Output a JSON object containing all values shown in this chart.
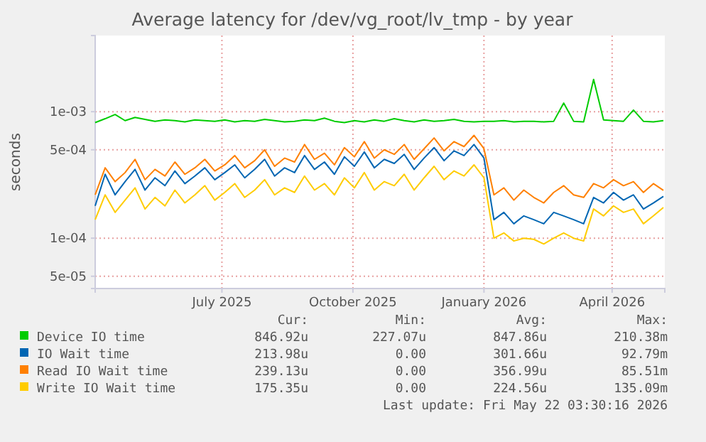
{
  "chart_data": {
    "type": "line",
    "title": "Average latency for /dev/vg_root/lv_tmp - by year",
    "ylabel": "seconds",
    "log": "y",
    "grid": true,
    "legend": "bottom",
    "line_style": "solid",
    "marker": "none",
    "xlim": [
      "2025-04-17",
      "2026-05-22"
    ],
    "xticks": [
      {
        "value": "2025-07-15",
        "label": "July 2025"
      },
      {
        "value": "2025-10-15",
        "label": "October 2025"
      },
      {
        "value": "2026-01-15",
        "label": "January 2026"
      },
      {
        "value": "2026-04-15",
        "label": "April 2026"
      }
    ],
    "ylim": [
      4e-05,
      0.004
    ],
    "yticks": [
      {
        "value": 5e-05,
        "label": "5e-05"
      },
      {
        "value": 0.0001,
        "label": "1e-04"
      },
      {
        "value": 0.0005,
        "label": "5e-04"
      },
      {
        "value": 0.001,
        "label": "1e-03"
      }
    ],
    "x": [
      "2025-04-17",
      "2025-04-24",
      "2025-05-01",
      "2025-05-08",
      "2025-05-15",
      "2025-05-22",
      "2025-05-29",
      "2025-06-05",
      "2025-06-12",
      "2025-06-19",
      "2025-06-26",
      "2025-07-03",
      "2025-07-10",
      "2025-07-17",
      "2025-07-24",
      "2025-07-31",
      "2025-08-07",
      "2025-08-14",
      "2025-08-21",
      "2025-08-28",
      "2025-09-04",
      "2025-09-11",
      "2025-09-18",
      "2025-09-25",
      "2025-10-02",
      "2025-10-09",
      "2025-10-16",
      "2025-10-23",
      "2025-10-30",
      "2025-11-06",
      "2025-11-13",
      "2025-11-20",
      "2025-11-27",
      "2025-12-04",
      "2025-12-11",
      "2025-12-18",
      "2025-12-25",
      "2026-01-01",
      "2026-01-08",
      "2026-01-15",
      "2026-01-22",
      "2026-01-29",
      "2026-02-05",
      "2026-02-12",
      "2026-02-19",
      "2026-02-26",
      "2026-03-05",
      "2026-03-12",
      "2026-03-19",
      "2026-03-26",
      "2026-04-02",
      "2026-04-09",
      "2026-04-16",
      "2026-04-23",
      "2026-04-30",
      "2026-05-07",
      "2026-05-14",
      "2026-05-21"
    ],
    "series": [
      {
        "name": "Device IO time",
        "color": "#00cc00",
        "values": [
          0.00082,
          0.00088,
          0.00095,
          0.00085,
          0.0009,
          0.00087,
          0.00084,
          0.00086,
          0.00085,
          0.00083,
          0.00086,
          0.00085,
          0.00084,
          0.00086,
          0.00083,
          0.00085,
          0.00084,
          0.00087,
          0.00085,
          0.00083,
          0.00084,
          0.00086,
          0.00085,
          0.00089,
          0.00084,
          0.00082,
          0.00085,
          0.00083,
          0.00086,
          0.00084,
          0.00088,
          0.00085,
          0.00083,
          0.00086,
          0.00084,
          0.00085,
          0.00087,
          0.00084,
          0.00083,
          0.00084,
          0.00084,
          0.00085,
          0.00083,
          0.00084,
          0.00084,
          0.00083,
          0.00084,
          0.00117,
          0.00084,
          0.00083,
          0.0018,
          0.00086,
          0.00085,
          0.00084,
          0.00103,
          0.00084,
          0.00083,
          0.00085
        ]
      },
      {
        "name": "IO Wait time",
        "color": "#0066b3",
        "values": [
          0.00018,
          0.00032,
          0.00022,
          0.00028,
          0.00035,
          0.00024,
          0.0003,
          0.00026,
          0.00034,
          0.00027,
          0.00031,
          0.00036,
          0.00029,
          0.00033,
          0.00038,
          0.0003,
          0.00035,
          0.00042,
          0.00031,
          0.00036,
          0.00033,
          0.00045,
          0.00035,
          0.0004,
          0.00032,
          0.00044,
          0.00037,
          0.00048,
          0.00036,
          0.00042,
          0.00039,
          0.00046,
          0.00035,
          0.00043,
          0.00052,
          0.00041,
          0.00049,
          0.00045,
          0.00055,
          0.00043,
          0.00014,
          0.00016,
          0.00013,
          0.00015,
          0.00014,
          0.00013,
          0.00016,
          0.00015,
          0.00014,
          0.00013,
          0.00021,
          0.00019,
          0.00023,
          0.0002,
          0.00022,
          0.00017,
          0.00019,
          0.000214
        ]
      },
      {
        "name": "Read IO Wait time",
        "color": "#ff8000",
        "values": [
          0.00022,
          0.00036,
          0.00028,
          0.00033,
          0.00042,
          0.00029,
          0.00035,
          0.00031,
          0.0004,
          0.00032,
          0.00036,
          0.00042,
          0.00034,
          0.00038,
          0.00045,
          0.00036,
          0.00041,
          0.0005,
          0.00037,
          0.00043,
          0.0004,
          0.00055,
          0.00042,
          0.00047,
          0.00038,
          0.00052,
          0.00044,
          0.00058,
          0.00043,
          0.0005,
          0.00046,
          0.00055,
          0.00042,
          0.00051,
          0.00062,
          0.00049,
          0.00058,
          0.00053,
          0.00065,
          0.00051,
          0.00022,
          0.00025,
          0.0002,
          0.00024,
          0.00021,
          0.00019,
          0.00023,
          0.00026,
          0.00022,
          0.00021,
          0.00027,
          0.00025,
          0.00029,
          0.00026,
          0.00028,
          0.00023,
          0.00027,
          0.000239
        ]
      },
      {
        "name": "Write IO Wait time",
        "color": "#ffcc00",
        "values": [
          0.00014,
          0.00022,
          0.00016,
          0.0002,
          0.00025,
          0.00017,
          0.00021,
          0.00018,
          0.00024,
          0.00019,
          0.00022,
          0.00026,
          0.0002,
          0.00023,
          0.00027,
          0.00021,
          0.00024,
          0.00029,
          0.00022,
          0.00025,
          0.00023,
          0.00031,
          0.00024,
          0.00027,
          0.00022,
          0.0003,
          0.00025,
          0.00033,
          0.00024,
          0.00028,
          0.00026,
          0.00032,
          0.00024,
          0.0003,
          0.00037,
          0.00029,
          0.00034,
          0.00031,
          0.00038,
          0.0003,
          0.0001,
          0.00011,
          9.5e-05,
          0.0001,
          9.8e-05,
          9e-05,
          0.0001,
          0.00011,
          0.0001,
          9.5e-05,
          0.00017,
          0.00015,
          0.00018,
          0.00016,
          0.00017,
          0.00013,
          0.00015,
          0.000175
        ]
      }
    ],
    "annotations": [
      "Cur:",
      "Min:",
      "Avg:",
      "Max:",
      "846.92u",
      "227.07u",
      "847.86u",
      "210.38m",
      "213.98u",
      "0.00",
      "301.66u",
      "92.79m",
      "239.13u",
      "0.00",
      "356.99u",
      "85.51m",
      "175.35u",
      "0.00",
      "224.56u",
      "135.09m",
      "Last update: Fri May 22 03:30:16 2026"
    ]
  }
}
